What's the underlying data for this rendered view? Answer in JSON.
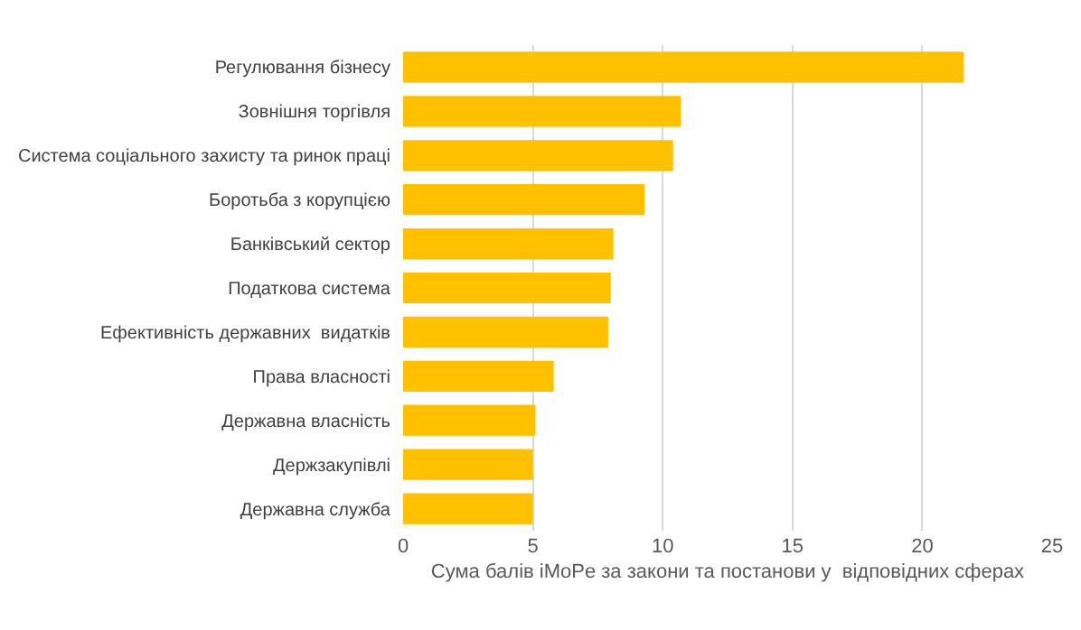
{
  "chart_data": {
    "type": "bar",
    "orientation": "horizontal",
    "xlabel": "Сума балів iMoPe за закони та постанови у  відповідних сферах",
    "categories": [
      "Регулювання бізнесу",
      "Зовнішня торгівля",
      "Система соціального захисту та ринок праці",
      "Боротьба з корупцією",
      "Банківський сектор",
      "Податкова система",
      "Ефективність державних  видатків",
      "Права власності",
      "Державна власність",
      "Держзакупівлі",
      "Державна служба"
    ],
    "values": [
      21.6,
      10.7,
      10.4,
      9.3,
      8.1,
      8.0,
      7.9,
      5.8,
      5.1,
      5.0,
      5.0
    ],
    "color": "#ffc000",
    "xlim": [
      0,
      25
    ],
    "xticks": [
      0,
      5,
      10,
      15,
      20,
      25
    ],
    "grid": "x",
    "legend": false
  }
}
